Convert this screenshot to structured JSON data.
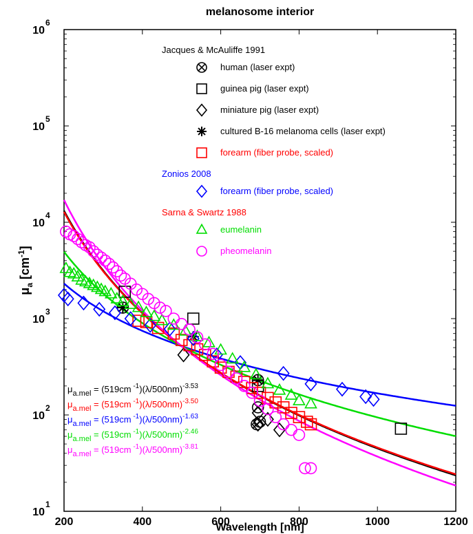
{
  "chart_data": {
    "type": "scatter",
    "title": "melanosome interior",
    "xlabel": "Wavelength [nm]",
    "ylabel": "μ_a [cm^-1]",
    "xlim": [
      200,
      1200
    ],
    "ylim": [
      10,
      1000000
    ],
    "yscale": "log",
    "x_ticks": [
      200,
      400,
      600,
      800,
      1000,
      1200
    ],
    "y_ticks": [
      10,
      100,
      1000,
      10000,
      100000,
      1000000
    ],
    "legend_groups": [
      {
        "title": "Jacques & McAuliffe 1991",
        "color": "#000000",
        "entries": [
          {
            "label": "human (laser expt)",
            "marker": "circle-x",
            "color": "#000000"
          },
          {
            "label": "guinea pig (laser expt)",
            "marker": "square",
            "color": "#000000"
          },
          {
            "label": "miniature pig (laser expt)",
            "marker": "diamond",
            "color": "#000000"
          },
          {
            "label": "cultured B-16 melanoma cells (laser expt)",
            "marker": "asterisk",
            "color": "#000000"
          },
          {
            "label": "forearm (fiber probe, scaled)",
            "marker": "square",
            "color": "#ff0000"
          }
        ]
      },
      {
        "title": "Zonios 2008",
        "color": "#0000ff",
        "entries": [
          {
            "label": "forearm (fiber probe, scaled)",
            "marker": "diamond",
            "color": "#0000ff"
          }
        ]
      },
      {
        "title": "Sarna & Swartz 1988",
        "color": "#ff0000",
        "entries": [
          {
            "label": "eumelanin",
            "marker": "triangle",
            "color": "#00dd00"
          },
          {
            "label": "pheomelanin",
            "marker": "circle",
            "color": "#ff00ff"
          }
        ]
      }
    ],
    "formulas": [
      {
        "color": "#000000",
        "prefix": "= (519cm",
        "exp1": "-1",
        "mid": ")(λ/500nm)",
        "exp2": "-3.53"
      },
      {
        "color": "#ff0000",
        "prefix": "= (519cm",
        "exp1": "-1",
        "mid": ")(λ/500nm)",
        "exp2": "-3.50"
      },
      {
        "color": "#0000ff",
        "prefix": "= (519cm",
        "exp1": "-1",
        "mid": ")(λ/500nm)",
        "exp2": "-1.63"
      },
      {
        "color": "#00dd00",
        "prefix": "= (519cm",
        "exp1": "-1",
        "mid": ")(λ/500nm)",
        "exp2": "-2.46"
      },
      {
        "color": "#ff00ff",
        "prefix": "= (519cm",
        "exp1": "-1",
        "mid": ")(λ/500nm)",
        "exp2": "-3.81"
      }
    ],
    "formula_symbol": "μ",
    "formula_subscript": "a.mel",
    "fit_lines": [
      {
        "color": "#000000",
        "coef": 519,
        "exp": -3.53
      },
      {
        "color": "#ff0000",
        "coef": 519,
        "exp": -3.5
      },
      {
        "color": "#0000ff",
        "coef": 519,
        "exp": -1.63
      },
      {
        "color": "#00dd00",
        "coef": 519,
        "exp": -2.46
      },
      {
        "color": "#ff00ff",
        "coef": 519,
        "exp": -3.81
      }
    ],
    "series": [
      {
        "name": "human (laser expt)",
        "marker": "circle-x",
        "color": "#000000",
        "points": [
          [
            350,
            1300
          ],
          [
            695,
            230
          ],
          [
            692,
            80
          ],
          [
            695,
            120
          ],
          [
            700,
            85
          ]
        ]
      },
      {
        "name": "guinea pig (laser expt)",
        "marker": "square",
        "color": "#000000",
        "points": [
          [
            355,
            1900
          ],
          [
            530,
            1000
          ],
          [
            695,
            200
          ],
          [
            1060,
            72
          ]
        ]
      },
      {
        "name": "miniature pig (laser expt)",
        "marker": "diamond",
        "color": "#000000",
        "points": [
          [
            505,
            420
          ],
          [
            695,
            105
          ],
          [
            695,
            80
          ],
          [
            720,
            90
          ],
          [
            750,
            70
          ]
        ]
      },
      {
        "name": "cultured B-16 melanoma cells (laser expt)",
        "marker": "asterisk",
        "color": "#000000",
        "points": [
          [
            530,
            650
          ],
          [
            350,
            1300
          ],
          [
            695,
            230
          ]
        ]
      },
      {
        "name": "forearm (fiber probe, scaled)",
        "marker": "square",
        "color": "#ff0000",
        "points": [
          [
            390,
            950
          ],
          [
            410,
            920
          ],
          [
            440,
            800
          ],
          [
            480,
            700
          ],
          [
            500,
            600
          ],
          [
            520,
            530
          ],
          [
            540,
            480
          ],
          [
            560,
            420
          ],
          [
            580,
            360
          ],
          [
            600,
            310
          ],
          [
            620,
            280
          ],
          [
            640,
            250
          ],
          [
            660,
            220
          ],
          [
            680,
            190
          ],
          [
            700,
            170
          ],
          [
            720,
            150
          ],
          [
            740,
            135
          ],
          [
            760,
            120
          ],
          [
            780,
            105
          ],
          [
            800,
            95
          ],
          [
            820,
            85
          ],
          [
            830,
            80
          ]
        ]
      },
      {
        "name": "forearm (fiber probe, scaled)",
        "marker": "diamond",
        "color": "#0000ff",
        "points": [
          [
            200,
            1750
          ],
          [
            210,
            1600
          ],
          [
            250,
            1450
          ],
          [
            290,
            1250
          ],
          [
            330,
            1150
          ],
          [
            370,
            1000
          ],
          [
            420,
            850
          ],
          [
            470,
            780
          ],
          [
            530,
            620
          ],
          [
            590,
            420
          ],
          [
            650,
            350
          ],
          [
            760,
            270
          ],
          [
            830,
            210
          ],
          [
            910,
            185
          ],
          [
            970,
            155
          ],
          [
            990,
            145
          ]
        ]
      },
      {
        "name": "eumelanin",
        "marker": "triangle",
        "color": "#00dd00",
        "points": [
          [
            205,
            3300
          ],
          [
            215,
            3000
          ],
          [
            225,
            2900
          ],
          [
            235,
            2700
          ],
          [
            245,
            2500
          ],
          [
            255,
            2400
          ],
          [
            265,
            2300
          ],
          [
            275,
            2200
          ],
          [
            285,
            2100
          ],
          [
            295,
            2000
          ],
          [
            305,
            1900
          ],
          [
            320,
            1800
          ],
          [
            335,
            1600
          ],
          [
            350,
            1500
          ],
          [
            370,
            1400
          ],
          [
            390,
            1300
          ],
          [
            410,
            1150
          ],
          [
            430,
            1050
          ],
          [
            450,
            950
          ],
          [
            480,
            850
          ],
          [
            510,
            740
          ],
          [
            540,
            650
          ],
          [
            570,
            560
          ],
          [
            600,
            470
          ],
          [
            630,
            380
          ],
          [
            660,
            310
          ],
          [
            690,
            260
          ],
          [
            720,
            210
          ],
          [
            750,
            180
          ],
          [
            780,
            160
          ],
          [
            800,
            140
          ],
          [
            830,
            130
          ]
        ]
      },
      {
        "name": "pheomelanin",
        "marker": "circle",
        "color": "#ff00ff",
        "points": [
          [
            205,
            8000
          ],
          [
            215,
            7500
          ],
          [
            225,
            7200
          ],
          [
            235,
            6700
          ],
          [
            245,
            6200
          ],
          [
            255,
            5800
          ],
          [
            265,
            5500
          ],
          [
            275,
            5000
          ],
          [
            285,
            4600
          ],
          [
            295,
            4300
          ],
          [
            305,
            4000
          ],
          [
            315,
            3700
          ],
          [
            325,
            3400
          ],
          [
            335,
            3100
          ],
          [
            345,
            2800
          ],
          [
            355,
            2600
          ],
          [
            370,
            2300
          ],
          [
            385,
            2000
          ],
          [
            400,
            1800
          ],
          [
            415,
            1600
          ],
          [
            430,
            1450
          ],
          [
            445,
            1300
          ],
          [
            460,
            1200
          ],
          [
            480,
            1000
          ],
          [
            500,
            880
          ],
          [
            520,
            770
          ],
          [
            540,
            640
          ],
          [
            560,
            540
          ],
          [
            580,
            430
          ],
          [
            600,
            330
          ],
          [
            620,
            280
          ],
          [
            640,
            240
          ],
          [
            660,
            200
          ],
          [
            680,
            170
          ],
          [
            700,
            140
          ],
          [
            720,
            115
          ],
          [
            740,
            95
          ],
          [
            760,
            80
          ],
          [
            780,
            70
          ],
          [
            800,
            62
          ],
          [
            815,
            28
          ],
          [
            830,
            28
          ]
        ]
      }
    ]
  }
}
